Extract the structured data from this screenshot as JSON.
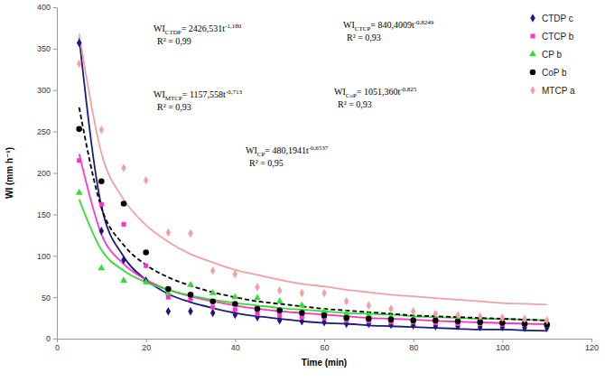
{
  "chart_data": {
    "type": "scatter",
    "x_label": "Time (min)",
    "y_label": "WI (mm h⁻¹)",
    "xlim": [
      0,
      120
    ],
    "xticks": [
      0,
      20,
      40,
      60,
      80,
      100,
      120
    ],
    "ylim": [
      0,
      400
    ],
    "yticks": [
      0,
      50,
      100,
      150,
      200,
      250,
      300,
      350,
      400
    ],
    "legend": "top-right",
    "x": [
      5,
      10,
      15,
      20,
      25,
      30,
      35,
      40,
      45,
      50,
      55,
      60,
      65,
      70,
      75,
      80,
      85,
      90,
      95,
      100,
      105,
      110
    ],
    "series": [
      {
        "name": "CTDP c",
        "color": "#1a1a80",
        "marker": "diamond",
        "line_style": "solid",
        "values": [
          357,
          130,
          95,
          70,
          33,
          33,
          31,
          29,
          26,
          22,
          21,
          20,
          18,
          18,
          17,
          16,
          15,
          15,
          14,
          14,
          13,
          13
        ],
        "curve": [
          363,
          160,
          99,
          71,
          54,
          44,
          37,
          31,
          27,
          24,
          21,
          19,
          18,
          16,
          15,
          14,
          13,
          12,
          11,
          11,
          10,
          9.5
        ]
      },
      {
        "name": "CTCP b",
        "color": "#ff33cc",
        "marker": "square",
        "line_style": "solid",
        "values": [
          215,
          162,
          138,
          88,
          50,
          48,
          38,
          35,
          30,
          28,
          26,
          25,
          22,
          21,
          20,
          20,
          19,
          18,
          18,
          17,
          17,
          16
        ],
        "curve": [
          223,
          126,
          90,
          71,
          59,
          51,
          45,
          40,
          36,
          33,
          31,
          29,
          27,
          25,
          24,
          23,
          21.5,
          20.5,
          19.6,
          18.8,
          18,
          17.4
        ]
      },
      {
        "name": "CP b",
        "color": "#33dd33",
        "marker": "triangle",
        "line_style": "solid",
        "values": [
          176,
          85,
          70,
          68,
          55,
          65,
          55,
          50,
          49,
          45,
          40,
          33,
          30,
          28,
          26,
          24,
          23,
          22,
          21,
          20,
          19,
          19
        ],
        "curve": [
          168,
          107,
          82,
          68,
          59,
          52,
          47,
          43,
          40,
          37,
          35,
          33,
          31,
          30,
          29,
          27,
          26,
          25,
          24,
          24,
          23,
          22
        ]
      },
      {
        "name": "CoP b",
        "color": "#000000",
        "marker": "circle",
        "line_style": "dashed",
        "values": [
          253,
          190,
          163,
          104,
          60,
          53,
          45,
          42,
          36,
          34,
          31,
          28,
          25,
          24,
          23,
          22,
          22,
          21,
          20,
          19,
          18,
          17
        ],
        "curve": [
          279,
          158,
          113,
          89,
          74,
          64,
          56,
          50,
          45,
          42,
          39,
          36,
          34,
          32,
          30,
          28,
          27,
          26,
          25,
          24,
          23,
          22
        ]
      },
      {
        "name": "MTCP a",
        "color": "#f4a0a0",
        "marker": "diamond",
        "line_style": "solid",
        "values": [
          332,
          252,
          206,
          191,
          128,
          127,
          82,
          78,
          62,
          58,
          55,
          55,
          45,
          40,
          36,
          33,
          30,
          28,
          27,
          25,
          24,
          22
        ],
        "curve": [
          368,
          224,
          168,
          137,
          117,
          102,
          92,
          83,
          77,
          71,
          66,
          63,
          59,
          56,
          53,
          51,
          49,
          47,
          45,
          43,
          42,
          41
        ]
      }
    ],
    "annotations": [
      {
        "label": "WI",
        "sub": "CTDP",
        "eq": "= 2426,531t",
        "exp": "-1,180",
        "r2": "R² = 0,99"
      },
      {
        "label": "WI",
        "sub": "CTCP",
        "eq": "= 840,4009t",
        "exp": "-0,8249",
        "r2": "R² = 0,93"
      },
      {
        "label": "WI",
        "sub": "MTCP",
        "eq": "= 1157,558t",
        "exp": "-0,713",
        "r2": "R² = 0,93"
      },
      {
        "label": "WI",
        "sub": "CoP",
        "eq": "= 1051,360t",
        "exp": "-0,825",
        "r2": "R² = 0,93"
      },
      {
        "label": "WI",
        "sub": "CP",
        "eq": "= 480,1941t",
        "exp": "-0,6537",
        "r2": "R² = 0,95"
      }
    ]
  }
}
